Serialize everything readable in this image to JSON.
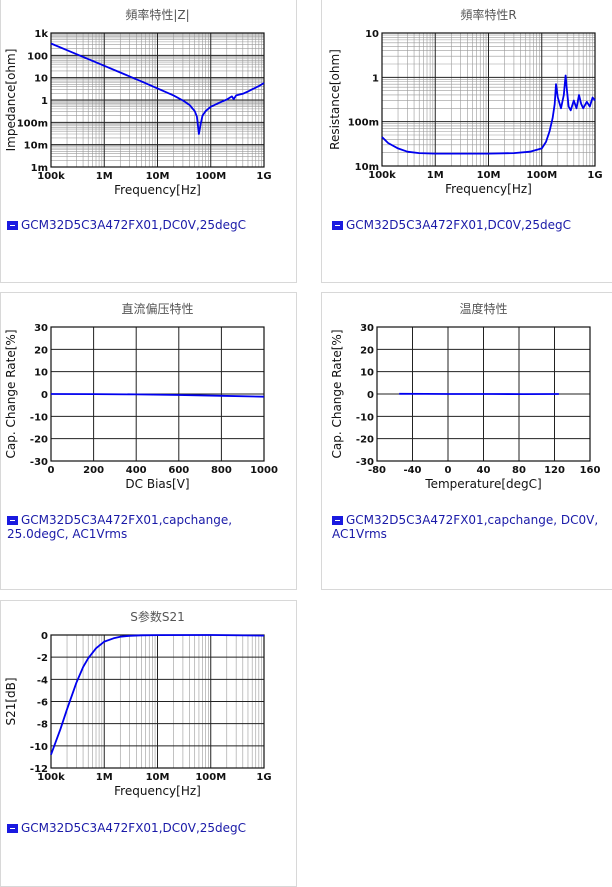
{
  "colors": {
    "line": "#0000ee",
    "grid_major": "#222222",
    "grid_minor": "#9a9a9a",
    "legend_text": "#1a1aa8"
  },
  "chart_data": [
    {
      "id": "impedance",
      "type": "line",
      "title": "頻率特性|Z|",
      "xlabel": "Frequency[Hz]",
      "ylabel": "Impedance[ohm]",
      "xscale": "log",
      "yscale": "log",
      "xlim": [
        100000,
        1000000000
      ],
      "ylim": [
        0.001,
        1000
      ],
      "xticks": [
        {
          "v": 100000,
          "label": "100k"
        },
        {
          "v": 1000000,
          "label": "1M"
        },
        {
          "v": 10000000,
          "label": "10M"
        },
        {
          "v": 100000000,
          "label": "100M"
        },
        {
          "v": 1000000000,
          "label": "1G"
        }
      ],
      "yticks": [
        {
          "v": 0.001,
          "label": "1m"
        },
        {
          "v": 0.01,
          "label": "10m"
        },
        {
          "v": 0.1,
          "label": "100m"
        },
        {
          "v": 1,
          "label": "1"
        },
        {
          "v": 10,
          "label": "10"
        },
        {
          "v": 100,
          "label": "100"
        },
        {
          "v": 1000,
          "label": "1k"
        }
      ],
      "grid": true,
      "series": [
        {
          "legend": "GCM32D5C3A472FX01,DC0V,25degC",
          "x": [
            100000,
            200000,
            500000,
            1000000,
            2000000,
            5000000,
            10000000,
            20000000,
            30000000,
            40000000,
            50000000,
            55000000,
            60000000,
            65000000,
            70000000,
            80000000,
            100000000,
            150000000,
            200000000,
            250000000,
            270000000,
            300000000,
            400000000,
            500000000,
            600000000,
            700000000,
            800000000,
            1000000000
          ],
          "y": [
            340,
            170,
            68,
            34,
            17,
            6.8,
            3.3,
            1.6,
            0.95,
            0.6,
            0.32,
            0.18,
            0.03,
            0.09,
            0.2,
            0.32,
            0.5,
            0.78,
            1.05,
            1.45,
            1.1,
            1.6,
            1.9,
            2.4,
            3.0,
            3.6,
            4.2,
            5.8
          ]
        }
      ]
    },
    {
      "id": "resistance",
      "type": "line",
      "title": "頻率特性R",
      "xlabel": "Frequency[Hz]",
      "ylabel": "Resistance[ohm]",
      "xscale": "log",
      "yscale": "log",
      "xlim": [
        100000,
        1000000000
      ],
      "ylim": [
        0.01,
        10
      ],
      "xticks": [
        {
          "v": 100000,
          "label": "100k"
        },
        {
          "v": 1000000,
          "label": "1M"
        },
        {
          "v": 10000000,
          "label": "10M"
        },
        {
          "v": 100000000,
          "label": "100M"
        },
        {
          "v": 1000000000,
          "label": "1G"
        }
      ],
      "yticks": [
        {
          "v": 0.01,
          "label": "10m"
        },
        {
          "v": 0.1,
          "label": "100m"
        },
        {
          "v": 1,
          "label": "1"
        },
        {
          "v": 10,
          "label": "10"
        }
      ],
      "grid": true,
      "series": [
        {
          "legend": "GCM32D5C3A472FX01,DC0V,25degC",
          "x": [
            100000,
            130000,
            200000,
            300000,
            500000,
            1000000,
            3000000,
            10000000,
            30000000,
            60000000,
            100000000,
            120000000,
            140000000,
            160000000,
            175000000,
            185000000,
            200000000,
            230000000,
            260000000,
            280000000,
            300000000,
            320000000,
            350000000,
            400000000,
            450000000,
            500000000,
            550000000,
            600000000,
            700000000,
            800000000,
            900000000,
            1000000000
          ],
          "y": [
            0.045,
            0.033,
            0.025,
            0.021,
            0.0195,
            0.019,
            0.019,
            0.019,
            0.0195,
            0.021,
            0.025,
            0.035,
            0.06,
            0.12,
            0.25,
            0.7,
            0.35,
            0.2,
            0.4,
            1.1,
            0.45,
            0.22,
            0.18,
            0.3,
            0.2,
            0.4,
            0.25,
            0.2,
            0.28,
            0.22,
            0.35,
            0.3
          ]
        }
      ]
    },
    {
      "id": "dcbias",
      "type": "line",
      "title": "直流偏压特性",
      "xlabel": "DC Bias[V]",
      "ylabel": "Cap. Change Rate[%]",
      "xscale": "linear",
      "yscale": "linear",
      "xlim": [
        0,
        1000
      ],
      "ylim": [
        -30,
        30
      ],
      "xticks": [
        {
          "v": 0,
          "label": "0"
        },
        {
          "v": 200,
          "label": "200"
        },
        {
          "v": 400,
          "label": "400"
        },
        {
          "v": 600,
          "label": "600"
        },
        {
          "v": 800,
          "label": "800"
        },
        {
          "v": 1000,
          "label": "1000"
        }
      ],
      "yticks": [
        {
          "v": -30,
          "label": "-30"
        },
        {
          "v": -20,
          "label": "-20"
        },
        {
          "v": -10,
          "label": "-10"
        },
        {
          "v": 0,
          "label": "0"
        },
        {
          "v": 10,
          "label": "10"
        },
        {
          "v": 20,
          "label": "20"
        },
        {
          "v": 30,
          "label": "30"
        }
      ],
      "grid": true,
      "series": [
        {
          "legend": "GCM32D5C3A472FX01,capchange, 25.0degC, AC1Vrms",
          "x": [
            0,
            200,
            400,
            600,
            800,
            1000
          ],
          "y": [
            0,
            -0.05,
            -0.2,
            -0.45,
            -0.8,
            -1.2
          ]
        }
      ]
    },
    {
      "id": "temperature",
      "type": "line",
      "title": "温度特性",
      "xlabel": "Temperature[degC]",
      "ylabel": "Cap. Change Rate[%]",
      "xscale": "linear",
      "yscale": "linear",
      "xlim": [
        -80,
        160
      ],
      "ylim": [
        -30,
        30
      ],
      "xticks": [
        {
          "v": -80,
          "label": "-80"
        },
        {
          "v": -40,
          "label": "-40"
        },
        {
          "v": 0,
          "label": "0"
        },
        {
          "v": 40,
          "label": "40"
        },
        {
          "v": 80,
          "label": "80"
        },
        {
          "v": 120,
          "label": "120"
        },
        {
          "v": 160,
          "label": "160"
        }
      ],
      "yticks": [
        {
          "v": -30,
          "label": "-30"
        },
        {
          "v": -20,
          "label": "-20"
        },
        {
          "v": -10,
          "label": "-10"
        },
        {
          "v": 0,
          "label": "0"
        },
        {
          "v": 10,
          "label": "10"
        },
        {
          "v": 20,
          "label": "20"
        },
        {
          "v": 30,
          "label": "30"
        }
      ],
      "grid": true,
      "series": [
        {
          "legend": "GCM32D5C3A472FX01,capchange, DC0V, AC1Vrms",
          "x": [
            -55,
            -25,
            0,
            25,
            50,
            85,
            125
          ],
          "y": [
            0.1,
            0.05,
            0,
            0,
            0,
            -0.05,
            0
          ]
        }
      ]
    },
    {
      "id": "s21",
      "type": "line",
      "title": "S参数S21",
      "xlabel": "Frequency[Hz]",
      "ylabel": "S21[dB]",
      "xscale": "log",
      "yscale": "linear",
      "xlim": [
        100000,
        1000000000
      ],
      "ylim": [
        -12,
        0
      ],
      "xticks": [
        {
          "v": 100000,
          "label": "100k"
        },
        {
          "v": 1000000,
          "label": "1M"
        },
        {
          "v": 10000000,
          "label": "10M"
        },
        {
          "v": 100000000,
          "label": "100M"
        },
        {
          "v": 1000000000,
          "label": "1G"
        }
      ],
      "yticks": [
        {
          "v": -12,
          "label": "-12"
        },
        {
          "v": -10,
          "label": "-10"
        },
        {
          "v": -8,
          "label": "-8"
        },
        {
          "v": -6,
          "label": "-6"
        },
        {
          "v": -4,
          "label": "-4"
        },
        {
          "v": -2,
          "label": "-2"
        },
        {
          "v": 0,
          "label": "0"
        }
      ],
      "grid": true,
      "series": [
        {
          "legend": "GCM32D5C3A472FX01,DC0V,25degC",
          "x": [
            100000,
            150000,
            200000,
            300000,
            400000,
            500000,
            700000,
            1000000,
            1500000,
            2000000,
            3000000,
            5000000,
            10000000,
            100000000,
            1000000000
          ],
          "y": [
            -10.8,
            -8.5,
            -6.7,
            -4.3,
            -2.9,
            -2.1,
            -1.2,
            -0.6,
            -0.3,
            -0.15,
            -0.07,
            -0.03,
            -0.01,
            0,
            -0.05
          ]
        }
      ]
    }
  ]
}
